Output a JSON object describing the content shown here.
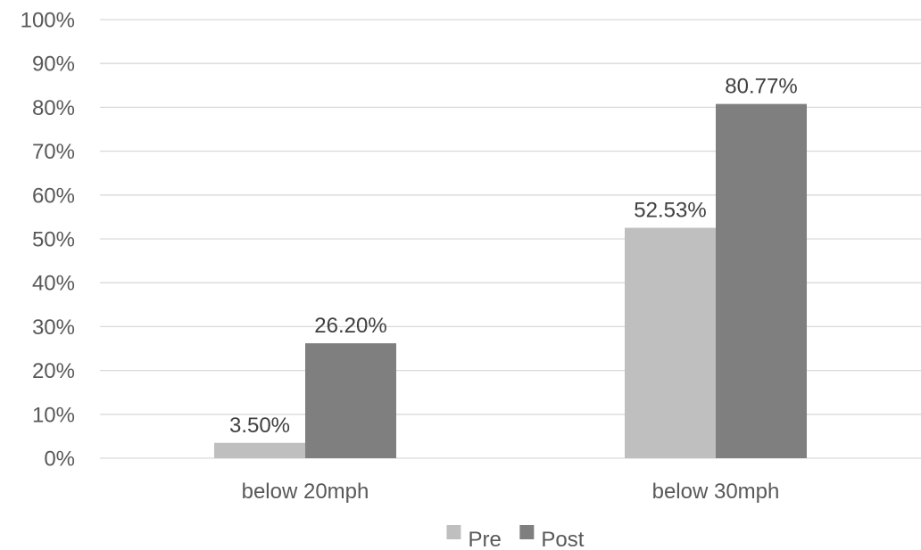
{
  "chart_data": {
    "type": "bar",
    "title": "",
    "xlabel": "",
    "ylabel": "",
    "categories": [
      "below 20mph",
      "below 30mph"
    ],
    "series": [
      {
        "name": "Pre",
        "values": [
          3.5,
          52.53
        ],
        "labels": [
          "3.50%",
          "52.53%"
        ],
        "color": "#bfbfbf"
      },
      {
        "name": "Post",
        "values": [
          26.2,
          80.77
        ],
        "labels": [
          "26.20%",
          "80.77%"
        ],
        "color": "#7f7f7f"
      }
    ],
    "ylim": [
      0,
      100
    ],
    "yticks": [
      0,
      10,
      20,
      30,
      40,
      50,
      60,
      70,
      80,
      90,
      100
    ],
    "ytick_labels": [
      "0%",
      "10%",
      "20%",
      "30%",
      "40%",
      "50%",
      "60%",
      "70%",
      "80%",
      "90%",
      "100%"
    ],
    "grid": true,
    "legend_position": "bottom"
  }
}
